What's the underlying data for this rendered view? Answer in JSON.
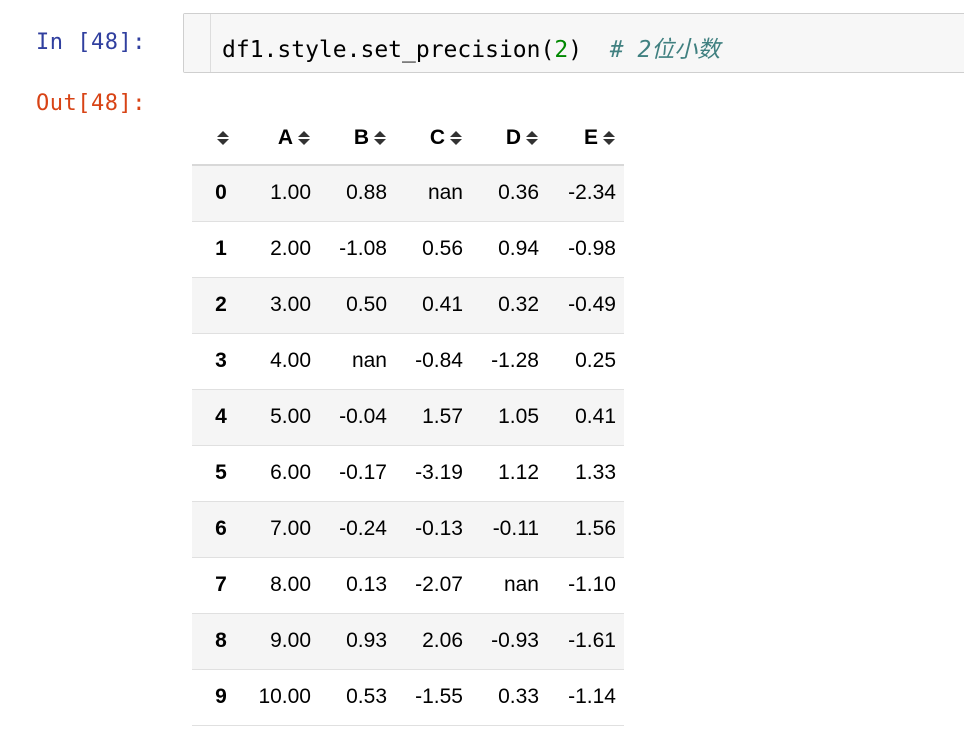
{
  "input_prompt": "In [48]:",
  "output_prompt": "Out[48]:",
  "code": {
    "before_number": "df1.style.set_precision(",
    "number": "2",
    "after_number": ")  ",
    "comment": "# 2位小数"
  },
  "table": {
    "columns": [
      "A",
      "B",
      "C",
      "D",
      "E"
    ],
    "rows": [
      {
        "index": "0",
        "cells": [
          "1.00",
          "0.88",
          "nan",
          "0.36",
          "-2.34"
        ]
      },
      {
        "index": "1",
        "cells": [
          "2.00",
          "-1.08",
          "0.56",
          "0.94",
          "-0.98"
        ]
      },
      {
        "index": "2",
        "cells": [
          "3.00",
          "0.50",
          "0.41",
          "0.32",
          "-0.49"
        ]
      },
      {
        "index": "3",
        "cells": [
          "4.00",
          "nan",
          "-0.84",
          "-1.28",
          "0.25"
        ]
      },
      {
        "index": "4",
        "cells": [
          "5.00",
          "-0.04",
          "1.57",
          "1.05",
          "0.41"
        ]
      },
      {
        "index": "5",
        "cells": [
          "6.00",
          "-0.17",
          "-3.19",
          "1.12",
          "1.33"
        ]
      },
      {
        "index": "6",
        "cells": [
          "7.00",
          "-0.24",
          "-0.13",
          "-0.11",
          "1.56"
        ]
      },
      {
        "index": "7",
        "cells": [
          "8.00",
          "0.13",
          "-2.07",
          "nan",
          "-1.10"
        ]
      },
      {
        "index": "8",
        "cells": [
          "9.00",
          "0.93",
          "2.06",
          "-0.93",
          "-1.61"
        ]
      },
      {
        "index": "9",
        "cells": [
          "10.00",
          "0.53",
          "-1.55",
          "0.33",
          "-1.14"
        ]
      }
    ]
  },
  "icons": {
    "sort": "sort-updown-icon"
  },
  "colors": {
    "input_prompt": "#303f9f",
    "output_prompt": "#d84315",
    "code_number": "#008800",
    "code_comment": "#408080",
    "row_stripe": "#f5f5f5"
  }
}
